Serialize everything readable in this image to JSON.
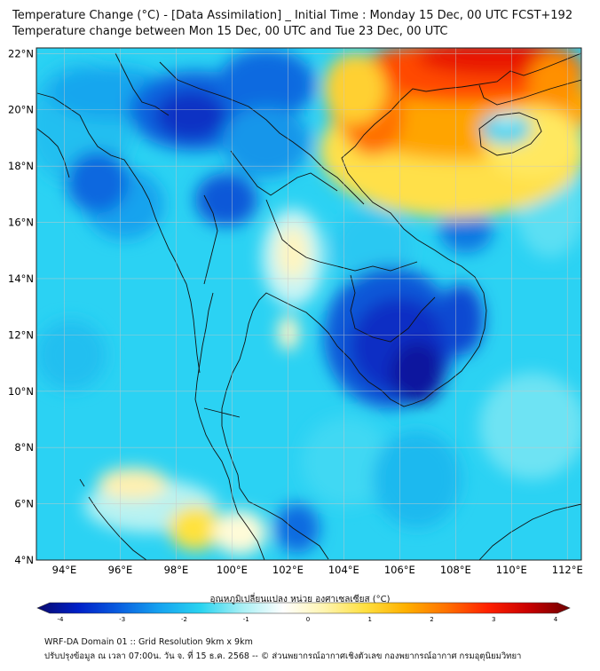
{
  "header": {
    "title_line1": "Temperature Change (°C) - [Data Assimilation] _ Initial Time : Monday 15 Dec, 00 UTC FCST+192",
    "title_line2": "Temperature change between Mon 15 Dec, 00 UTC and Tue 23 Dec, 00 UTC"
  },
  "map": {
    "lat_labels": [
      "22°N",
      "20°N",
      "18°N",
      "16°N",
      "14°N",
      "12°N",
      "10°N",
      "8°N",
      "6°N",
      "4°N"
    ],
    "lon_labels": [
      "94°E",
      "96°E",
      "98°E",
      "100°E",
      "102°E",
      "104°E",
      "106°E",
      "108°E",
      "110°E",
      "112°E"
    ],
    "lat_range": [
      4,
      22.2
    ],
    "lon_range": [
      93,
      112.5
    ],
    "gridlines": true
  },
  "colorbar": {
    "label": "อุณหภูมิเปลี่ยนแปลง หน่วย องศาเซลเซียส (°C)",
    "tick_labels": [
      "-4",
      "-3",
      "-2",
      "-1",
      "0",
      "1",
      "2",
      "3",
      "4"
    ],
    "range": [
      -4,
      4
    ],
    "colors": [
      "#0a0a6e",
      "#0020c8",
      "#0a5fe0",
      "#16a4f0",
      "#2ad4f0",
      "#a8f0f5",
      "#ffffff",
      "#fff5b0",
      "#ffe040",
      "#ffb000",
      "#ff7000",
      "#ff2000",
      "#c80000",
      "#6e0000"
    ]
  },
  "footer": {
    "line1": "WRF-DA Domain 01 :: Grid Resolution 9km x 9km",
    "line2": "ปรับปรุงข้อมูล ณ เวลา 07:00น. วัน จ. ที่ 15 ธ.ค. 2568 -- © ส่วนพยากรณ์อากาศเชิงตัวเลข กองพยากรณ์อากาศ กรมอุตุนิยมวิทยา"
  }
}
